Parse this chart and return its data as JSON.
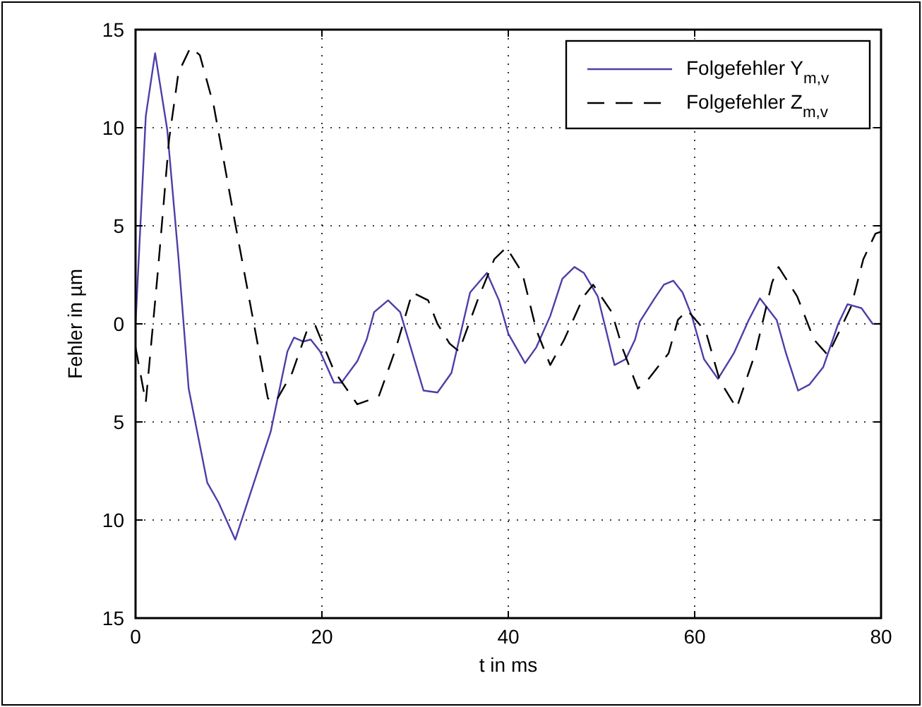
{
  "chart_data": {
    "type": "line",
    "xlabel": "t in ms",
    "ylabel": "Fehler in µm",
    "xlim": [
      0,
      80
    ],
    "xticks": [
      0,
      20,
      40,
      60,
      80
    ],
    "ylim": [
      -15,
      15
    ],
    "yticks": [
      {
        "value": -15,
        "label": "15"
      },
      {
        "value": -10,
        "label": "10"
      },
      {
        "value": -5,
        "label": "5"
      },
      0,
      5,
      10,
      15
    ],
    "grid": true,
    "legend": "top right",
    "series": [
      {
        "name": "Folgefehler Y$_{m,v}$",
        "color": "#4b3fa8",
        "line_style": "solid",
        "x": [
          0,
          1.1,
          2.1,
          3.4,
          4.6,
          5.7,
          7.7,
          8.9,
          10.7,
          12.7,
          14.5,
          16.3,
          17,
          18,
          18.8,
          19.8,
          21.3,
          22.1,
          23.8,
          24.8,
          25.6,
          27.1,
          28.4,
          30.9,
          32.4,
          33.9,
          35.9,
          37.7,
          39,
          40,
          41.8,
          43,
          44.5,
          45.8,
          47.1,
          48.1,
          49.6,
          51.4,
          52.6,
          53.6,
          54.1,
          55.7,
          56.7,
          57.7,
          58.7,
          59.7,
          61,
          62.5,
          64.2,
          65.8,
          67,
          68.8,
          69.8,
          71.1,
          72.3,
          73.8,
          75.4,
          76.4,
          77.9,
          79.1,
          80
        ],
        "values": [
          0,
          10.6,
          13.8,
          9.9,
          3.4,
          -3.3,
          -8.1,
          -9.1,
          -11,
          -8.1,
          -5.5,
          -1.4,
          -0.7,
          -0.9,
          -0.8,
          -1.4,
          -3,
          -3,
          -1.9,
          -0.8,
          0.6,
          1.2,
          0.6,
          -3.4,
          -3.5,
          -2.5,
          1.6,
          2.6,
          1.2,
          -0.5,
          -2,
          -1.2,
          0.4,
          2.3,
          2.9,
          2.6,
          1.4,
          -2.1,
          -1.8,
          -0.8,
          0.1,
          1.3,
          2,
          2.2,
          1.6,
          0.4,
          -1.8,
          -2.8,
          -1.5,
          0.2,
          1.3,
          0.2,
          -1.5,
          -3.4,
          -3.1,
          -2.2,
          0,
          1,
          0.8,
          0,
          0
        ]
      },
      {
        "name": "Folgefehler Z$_{m,v}$",
        "color": "#000000",
        "line_style": "dashed",
        "x": [
          0,
          1.1,
          2.4,
          3.6,
          4.6,
          5.9,
          6.9,
          8.4,
          10.7,
          12.7,
          14.2,
          15,
          16.8,
          18.5,
          19.3,
          21.3,
          23.8,
          26.1,
          27.9,
          29.7,
          31.4,
          32.4,
          33.7,
          34.7,
          36.7,
          38.5,
          39.8,
          41.5,
          43,
          44.5,
          46,
          48.1,
          49.1,
          51.1,
          52.3,
          53.9,
          54.9,
          57.2,
          58.2,
          59.2,
          61.2,
          62.7,
          64.5,
          66.5,
          68.3,
          69,
          71,
          72.8,
          74.3,
          76.8,
          78.1,
          79.4,
          80
        ],
        "values": [
          -1.2,
          -4,
          2.7,
          9.4,
          12.8,
          14.1,
          13.7,
          11.1,
          5.1,
          0,
          -3.8,
          -4,
          -2.5,
          -0.2,
          -0.1,
          -2.4,
          -4.1,
          -3.7,
          -1.3,
          1.6,
          1.2,
          0,
          -1,
          -1.4,
          1.2,
          3.3,
          3.9,
          2.6,
          -0.3,
          -2.1,
          -0.8,
          1.4,
          2,
          0.6,
          -1.3,
          -3.3,
          -2.9,
          -1.5,
          0.2,
          0.7,
          -0.4,
          -2.9,
          -4.3,
          -1.5,
          2.1,
          2.9,
          1.4,
          -0.8,
          -1.6,
          0.9,
          3.3,
          4.6,
          4.7
        ]
      }
    ]
  }
}
